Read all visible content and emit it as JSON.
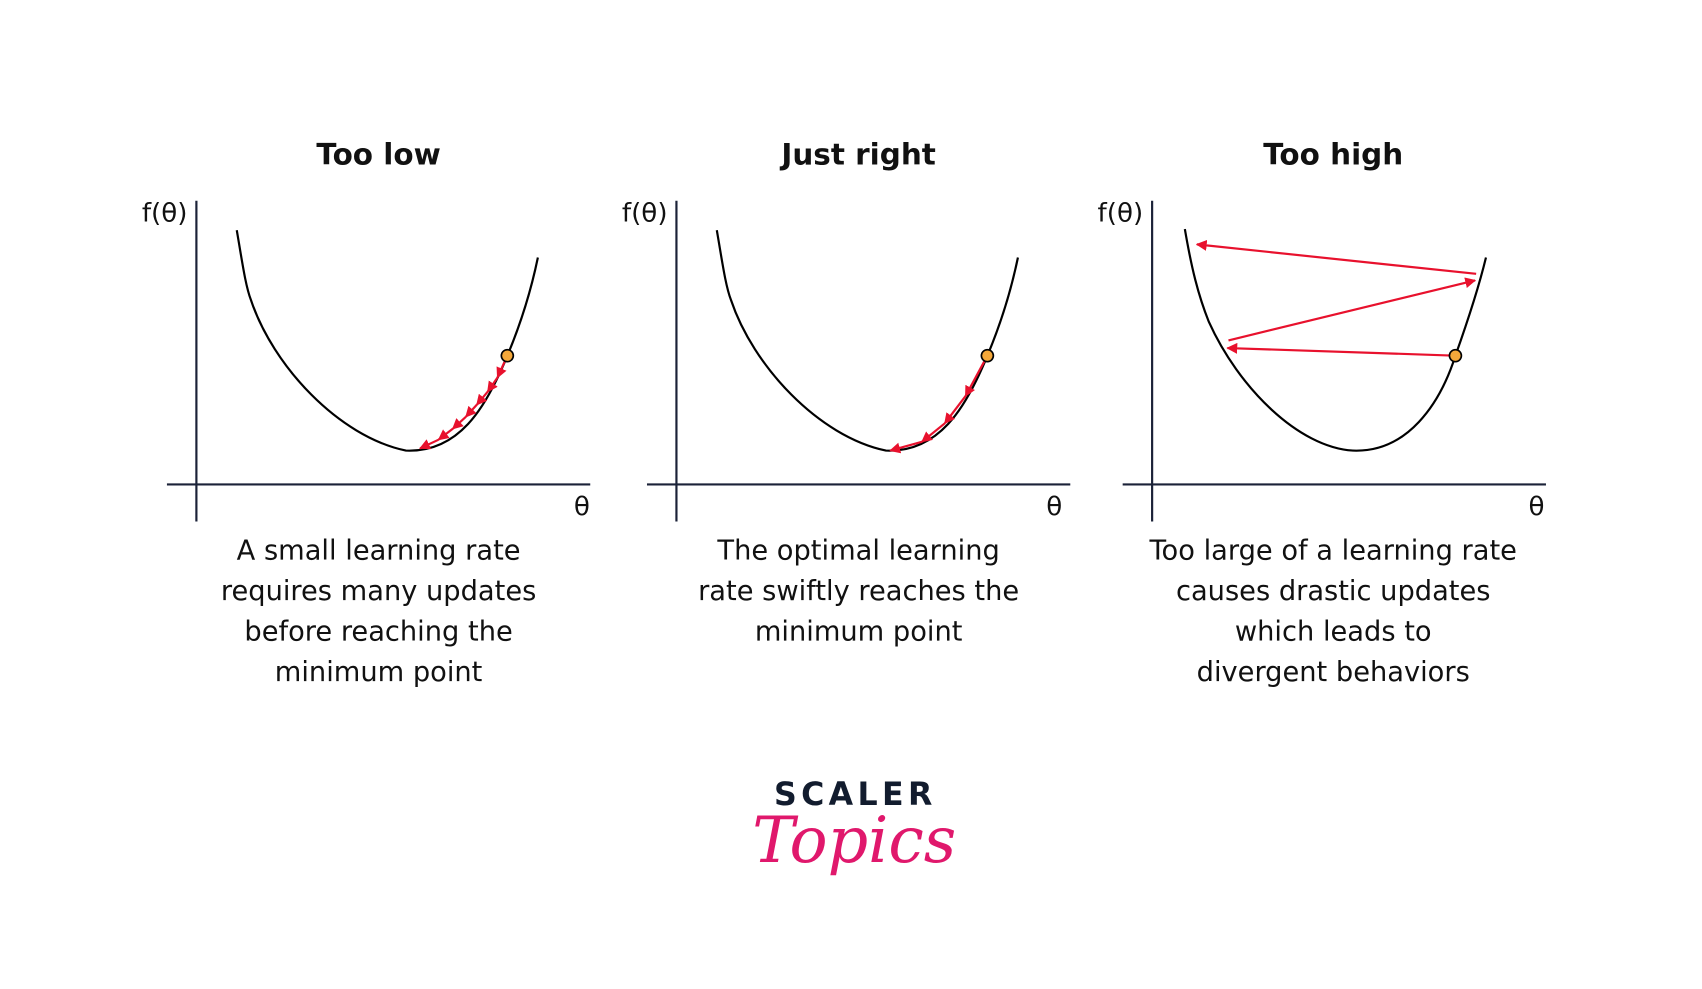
{
  "panels": [
    {
      "title": "Too low",
      "y_label": "f(θ)",
      "x_label": "θ",
      "caption": [
        "A small learning rate",
        "requires many updates",
        "before reaching the",
        "minimum point"
      ]
    },
    {
      "title": "Just right",
      "y_label": "f(θ)",
      "x_label": "θ",
      "caption": [
        "The optimal learning",
        "rate swiftly reaches the",
        "minimum point"
      ]
    },
    {
      "title": "Too high",
      "y_label": "f(θ)",
      "x_label": "θ",
      "caption": [
        "Too large of a learning rate",
        "causes drastic updates",
        "which leads to",
        "divergent behaviors"
      ]
    }
  ],
  "logo": {
    "line1": "SCALER",
    "line2": "Topics"
  },
  "colors": {
    "curve": "#000000",
    "axis": "#1b2238",
    "arrow": "#e8112d",
    "point": "#f4a83a",
    "logo_accent": "#e0186c"
  }
}
